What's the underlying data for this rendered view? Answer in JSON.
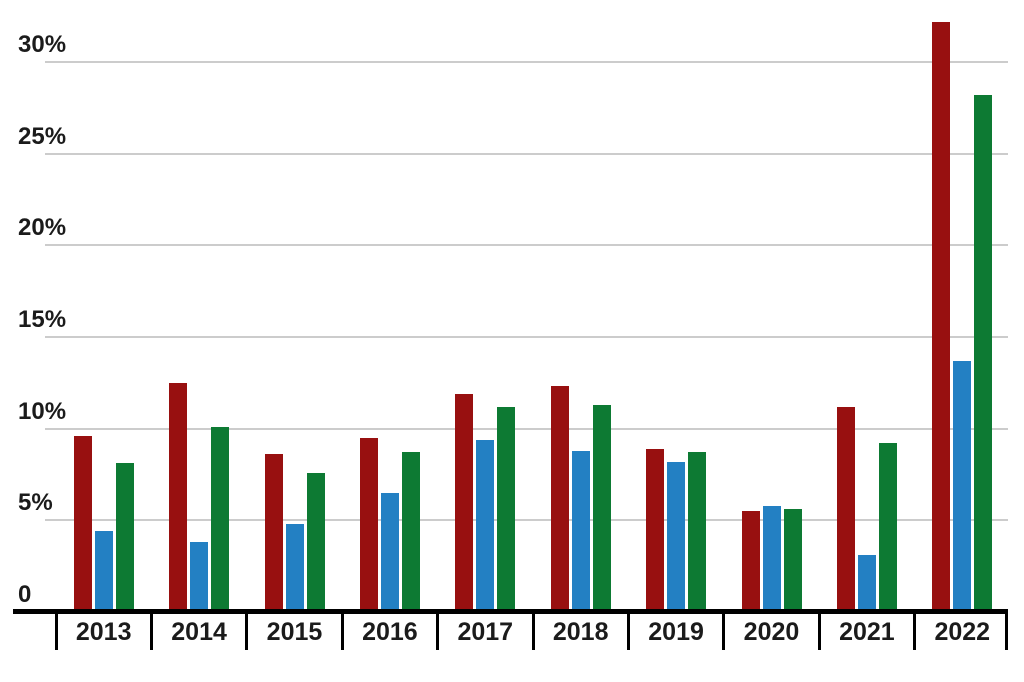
{
  "chart": {
    "background_color": "#ffffff",
    "text_color": "#1b1b1b",
    "gridline_color": "#cccccc",
    "axis_color": "#000000"
  },
  "chart_data": {
    "type": "bar",
    "title": "",
    "xlabel": "",
    "ylabel": "",
    "categories": [
      "2013",
      "2014",
      "2015",
      "2016",
      "2017",
      "2018",
      "2019",
      "2020",
      "2021",
      "2022"
    ],
    "series": [
      {
        "name": "red",
        "color": "#981010",
        "values": [
          9.6,
          12.5,
          8.6,
          9.5,
          11.9,
          12.3,
          8.9,
          5.5,
          11.2,
          32.2
        ]
      },
      {
        "name": "blue",
        "color": "#2380C3",
        "values": [
          4.4,
          3.8,
          4.8,
          6.5,
          9.4,
          8.8,
          8.2,
          5.8,
          3.1,
          13.7
        ]
      },
      {
        "name": "green",
        "color": "#0D7A33",
        "values": [
          8.1,
          10.1,
          7.6,
          8.7,
          11.2,
          11.3,
          8.7,
          5.6,
          9.2,
          28.2
        ]
      }
    ],
    "y_axis": {
      "unit": "%",
      "ticks": [
        0,
        5,
        10,
        15,
        20,
        25,
        30
      ],
      "tick_labels": [
        "0",
        "5%",
        "10%",
        "15%",
        "20%",
        "25%",
        "30%"
      ],
      "ylim": [
        0,
        32.5
      ]
    },
    "grid": true,
    "legend": "none"
  }
}
